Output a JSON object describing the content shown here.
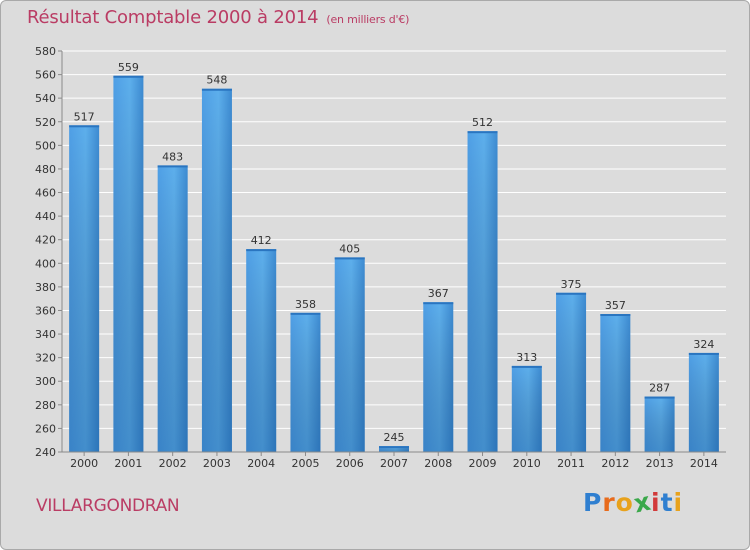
{
  "chart_data": {
    "type": "bar",
    "title": "Résultat Comptable 2000 à 2014",
    "subtitle": "(en milliers d'€)",
    "categories": [
      "2000",
      "2001",
      "2002",
      "2003",
      "2004",
      "2005",
      "2006",
      "2007",
      "2008",
      "2009",
      "2010",
      "2011",
      "2012",
      "2013",
      "2014"
    ],
    "values": [
      517,
      559,
      483,
      548,
      412,
      358,
      405,
      245,
      367,
      512,
      313,
      375,
      357,
      287,
      324
    ],
    "ylim": [
      240,
      580
    ],
    "yticks": [
      240,
      260,
      280,
      300,
      320,
      340,
      360,
      380,
      400,
      420,
      440,
      460,
      480,
      500,
      520,
      540,
      560,
      580
    ],
    "xlabel": "",
    "ylabel": "",
    "grid": true,
    "bar_color": "#4a9be0"
  },
  "town": "VILLARGONDRAN",
  "logo": {
    "text": "Proxiti",
    "letters": [
      {
        "ch": "P",
        "color": "#2f7fd0"
      },
      {
        "ch": "r",
        "color": "#e86b1c"
      },
      {
        "ch": "o",
        "color": "#e8a21c"
      },
      {
        "ch": "x",
        "color": "#3aa84a"
      },
      {
        "ch": "i",
        "color": "#d23a3a"
      },
      {
        "ch": "t",
        "color": "#2f7fd0"
      },
      {
        "ch": "i",
        "color": "#e8a21c"
      }
    ]
  }
}
